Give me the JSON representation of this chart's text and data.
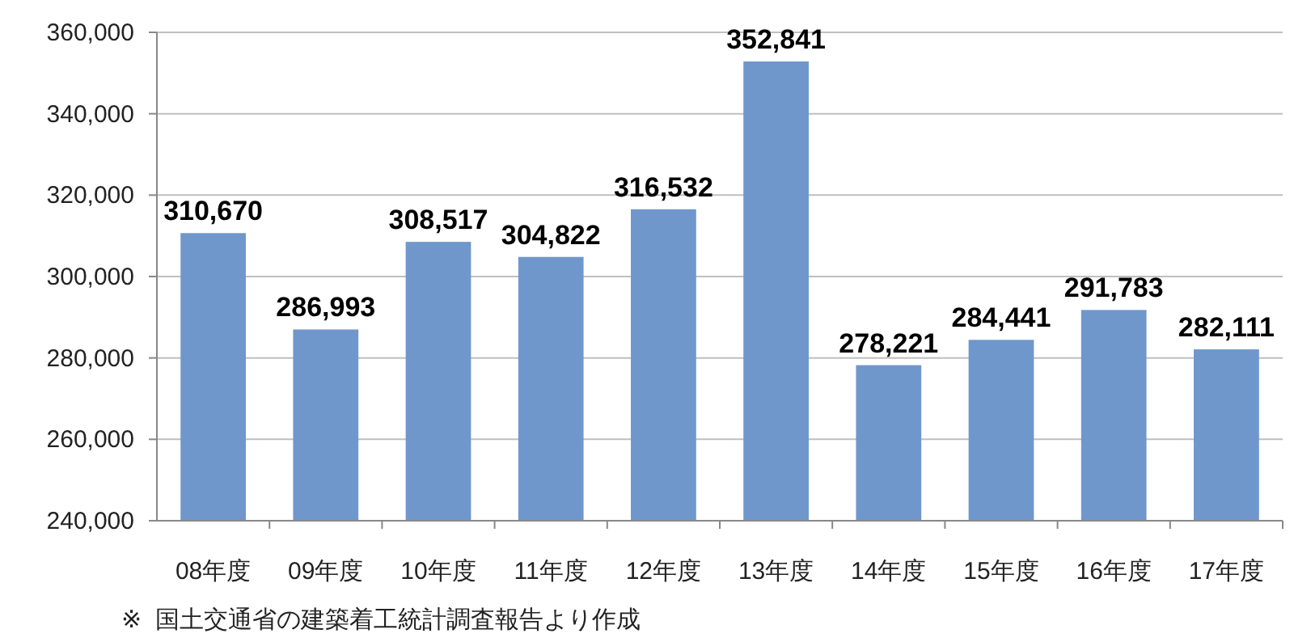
{
  "chart_data": {
    "type": "bar",
    "categories": [
      "08年度",
      "09年度",
      "10年度",
      "11年度",
      "12年度",
      "13年度",
      "14年度",
      "15年度",
      "16年度",
      "17年度"
    ],
    "values": [
      310670,
      286993,
      308517,
      304822,
      316532,
      352841,
      278221,
      284441,
      291783,
      282111
    ],
    "value_labels": [
      "310,670",
      "286,993",
      "308,517",
      "304,822",
      "316,532",
      "352,841",
      "278,221",
      "284,441",
      "291,783",
      "282,111"
    ],
    "color": "#7097cc",
    "ylim": [
      240000,
      360000
    ],
    "yticks": [
      {
        "value": 240000,
        "label": "240,000"
      },
      {
        "value": 260000,
        "label": "260,000"
      },
      {
        "value": 280000,
        "label": "280,000"
      },
      {
        "value": 300000,
        "label": "300,000"
      },
      {
        "value": 320000,
        "label": "320,000"
      },
      {
        "value": 340000,
        "label": "340,000"
      },
      {
        "value": 360000,
        "label": "360,000"
      }
    ],
    "grid": "y",
    "annotations": [
      "※  国土交通省の建築着工統計調査報告より作成"
    ]
  }
}
